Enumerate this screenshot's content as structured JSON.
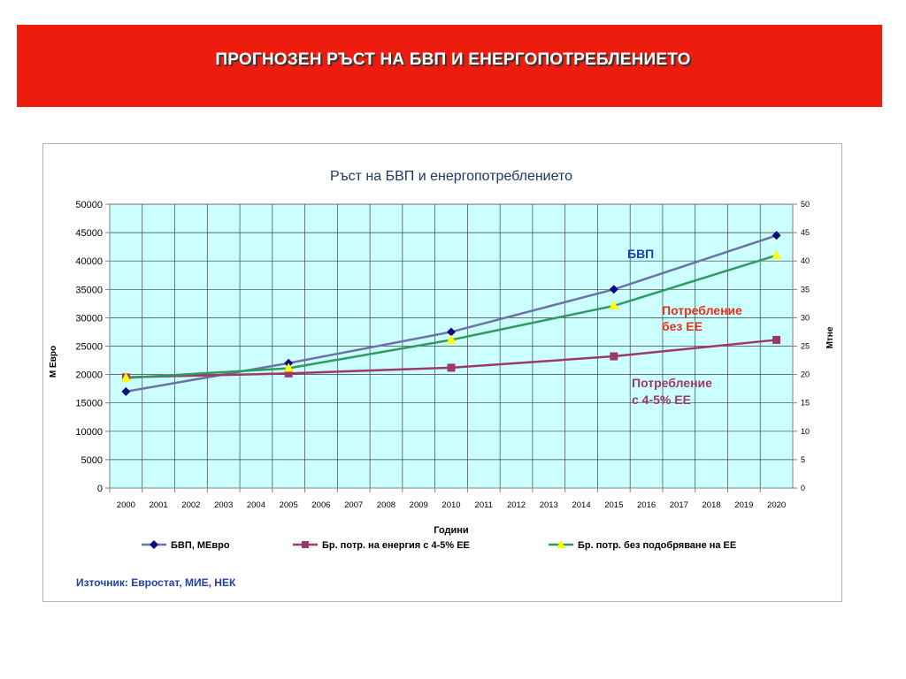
{
  "header": {
    "title": "ПРОГНОЗЕН РЪСТ НА БВП И ЕНЕРГОПОТРЕБЛЕНИЕТО"
  },
  "source_note": "Източник: Евростат, МИЕ, НЕК",
  "colors": {
    "banner": "#ee1c0e",
    "plot_background": "#ccffff",
    "gdp": "#7070a8",
    "with_ee": "#9b3a6a",
    "without_ee": "#2e9a5c"
  },
  "chart_data": {
    "type": "line",
    "title": "Ръст на БВП и енергопотреблението",
    "xlabel": "Години",
    "ylabel": "М Евро",
    "y2label": "Мтне",
    "categories": [
      "2000",
      "2001",
      "2002",
      "2003",
      "2004",
      "2005",
      "2006",
      "2007",
      "2008",
      "2009",
      "2010",
      "2011",
      "2012",
      "2013",
      "2014",
      "2015",
      "2016",
      "2017",
      "2018",
      "2019",
      "2020"
    ],
    "ylim": [
      0,
      50000
    ],
    "yticks": [
      "50000",
      "45000",
      "40000",
      "35000",
      "30000",
      "25000",
      "20000",
      "15000",
      "10000",
      "5000",
      "0"
    ],
    "y2lim": [
      0,
      50
    ],
    "y2ticks": [
      "50",
      "45",
      "40",
      "35",
      "30",
      "25",
      "20",
      "15",
      "10",
      "5",
      "0"
    ],
    "grid": true,
    "legend_position": "bottom",
    "series": [
      {
        "name": "БВП, МЕвро",
        "axis": "left",
        "marker": "diamond",
        "color": "#7070a8",
        "marker_color": "#0a0a7a",
        "x": [
          "2000",
          "2005",
          "2010",
          "2015",
          "2020"
        ],
        "values": [
          17000,
          22000,
          27500,
          35000,
          44500
        ]
      },
      {
        "name": "Бр. потр. на енергия с 4-5% ЕЕ",
        "axis": "right",
        "marker": "square",
        "color": "#9b3a6a",
        "marker_color": "#9b3a6a",
        "x": [
          "2000",
          "2005",
          "2010",
          "2015",
          "2020"
        ],
        "values": [
          19.5,
          20.2,
          21.2,
          23.2,
          26.1
        ]
      },
      {
        "name": "Бр. потр. без подобряване на ЕЕ",
        "axis": "right",
        "marker": "triangle",
        "color": "#2e9a5c",
        "marker_color": "#ffff00",
        "x": [
          "2000",
          "2005",
          "2010",
          "2015",
          "2020"
        ],
        "values": [
          19.4,
          21.1,
          26.1,
          32.1,
          41.0
        ]
      }
    ],
    "annotations": [
      {
        "text": "БВП",
        "color": "#1f3fa8"
      },
      {
        "text": "Потребление",
        "text2": "без ЕЕ",
        "color": "#e8301a"
      },
      {
        "text": "Потребление",
        "text2": "с 4-5% ЕЕ",
        "color": "#9b3a6a"
      }
    ]
  }
}
